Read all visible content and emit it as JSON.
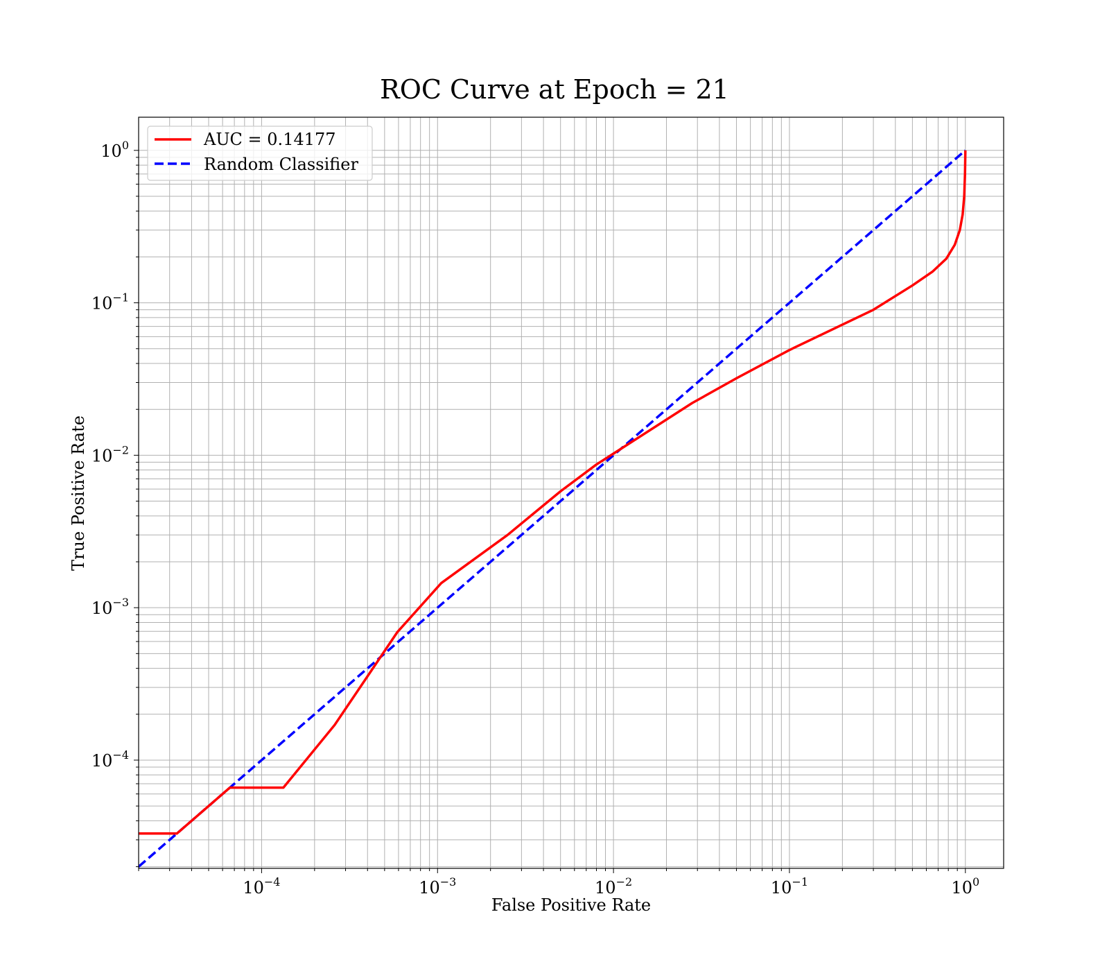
{
  "chart_data": {
    "type": "line",
    "title": "ROC Curve at Epoch = 21",
    "xlabel": "False Positive Rate",
    "ylabel": "True Positive Rate",
    "xscale": "log",
    "yscale": "log",
    "xlim": [
      2e-05,
      1.65
    ],
    "ylim": [
      1.95e-05,
      1.65
    ],
    "grid": "major and minor",
    "legend_position": "upper-left",
    "x_ticks": [
      {
        "base": "10",
        "exp": "−4",
        "value": 0.0001
      },
      {
        "base": "10",
        "exp": "−3",
        "value": 0.001
      },
      {
        "base": "10",
        "exp": "−2",
        "value": 0.01
      },
      {
        "base": "10",
        "exp": "−1",
        "value": 0.1
      },
      {
        "base": "10",
        "exp": "0",
        "value": 1
      }
    ],
    "y_ticks": [
      {
        "base": "10",
        "exp": "−4",
        "value": 0.0001
      },
      {
        "base": "10",
        "exp": "−3",
        "value": 0.001
      },
      {
        "base": "10",
        "exp": "−2",
        "value": 0.01
      },
      {
        "base": "10",
        "exp": "−1",
        "value": 0.1
      },
      {
        "base": "10",
        "exp": "0",
        "value": 1
      }
    ],
    "series": [
      {
        "name": "AUC = 0.14177",
        "color": "#ff0000",
        "style": "solid",
        "points": [
          [
            2e-05,
            3.3e-05
          ],
          [
            3.3e-05,
            3.3e-05
          ],
          [
            6.6e-05,
            6.6e-05
          ],
          [
            0.000133,
            6.6e-05
          ],
          [
            0.00026,
            0.00017
          ],
          [
            0.00059,
            0.00069
          ],
          [
            0.00105,
            0.00145
          ],
          [
            0.0025,
            0.003
          ],
          [
            0.005,
            0.0058
          ],
          [
            0.008,
            0.0087
          ],
          [
            0.011,
            0.011
          ],
          [
            0.028,
            0.022
          ],
          [
            0.05,
            0.032
          ],
          [
            0.1,
            0.049
          ],
          [
            0.3,
            0.09
          ],
          [
            0.5,
            0.13
          ],
          [
            0.65,
            0.16
          ],
          [
            0.78,
            0.195
          ],
          [
            0.87,
            0.24
          ],
          [
            0.93,
            0.3
          ],
          [
            0.965,
            0.38
          ],
          [
            0.985,
            0.5
          ],
          [
            0.995,
            0.7
          ],
          [
            1.0,
            1.0
          ]
        ]
      },
      {
        "name": "Random Classifier",
        "color": "#0000ff",
        "style": "dashed",
        "points": [
          [
            2e-05,
            2e-05
          ],
          [
            1.0,
            1.0
          ]
        ]
      }
    ]
  }
}
